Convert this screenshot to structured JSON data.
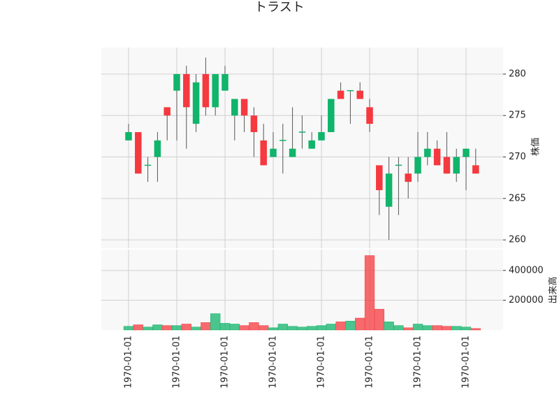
{
  "chart_data": {
    "type": "candlestick",
    "title": "トラスト",
    "y_label": "株価",
    "volume_label": "出来高",
    "categories": [
      "1970-01-01",
      null,
      null,
      null,
      null,
      "1970-01-01",
      null,
      null,
      null,
      null,
      "1970-01-01",
      null,
      null,
      null,
      null,
      "1970-01-01",
      null,
      null,
      null,
      null,
      "1970-01-01",
      null,
      null,
      null,
      null,
      "1970-01-01",
      null,
      null,
      null,
      null,
      "1970-01-01",
      null,
      null,
      null,
      null,
      "1970-01-01",
      null
    ],
    "open": [
      272,
      273,
      269,
      270,
      276,
      278,
      280,
      274,
      280,
      276,
      278,
      275,
      277,
      275,
      272,
      270,
      272,
      270,
      273,
      271,
      272,
      273,
      278,
      278,
      278,
      276,
      269,
      264,
      269,
      268,
      268,
      270,
      271,
      270,
      268,
      270,
      269
    ],
    "high": [
      274,
      273,
      270,
      273,
      276,
      280,
      281,
      280,
      282,
      280,
      281,
      277,
      277,
      276,
      274,
      273,
      274,
      276,
      275,
      273,
      275,
      277,
      279,
      278,
      279,
      277,
      269,
      270,
      270,
      270,
      273,
      273,
      272,
      273,
      271,
      271,
      271
    ],
    "low": [
      272,
      268,
      267,
      267,
      272,
      272,
      271,
      273,
      275,
      275,
      278,
      272,
      273,
      270,
      269,
      270,
      268,
      270,
      271,
      271,
      272,
      273,
      277,
      274,
      277,
      273,
      263,
      260,
      263,
      265,
      267,
      269,
      269,
      268,
      267,
      266,
      268
    ],
    "close": [
      273,
      268,
      269,
      272,
      275,
      280,
      276,
      279,
      276,
      280,
      280,
      277,
      275,
      273,
      269,
      271,
      272,
      271,
      273,
      272,
      273,
      277,
      277,
      278,
      277,
      274,
      266,
      268,
      269,
      267,
      270,
      271,
      269,
      268,
      270,
      271,
      268
    ],
    "volume": [
      25000,
      35000,
      20000,
      35000,
      30000,
      30000,
      40000,
      20000,
      50000,
      110000,
      45000,
      40000,
      30000,
      50000,
      30000,
      15000,
      40000,
      25000,
      20000,
      25000,
      30000,
      40000,
      55000,
      60000,
      80000,
      500000,
      140000,
      55000,
      30000,
      15000,
      40000,
      30000,
      30000,
      25000,
      25000,
      20000,
      10000
    ],
    "up_color": "#10b46a",
    "down_color": "#f5393f",
    "ylim": [
      259,
      283.2
    ],
    "yticks": [
      260,
      265,
      270,
      275,
      280
    ],
    "volume_ylim": [
      0,
      540000
    ],
    "volume_ticks": [
      200000,
      400000
    ],
    "grid": true
  }
}
